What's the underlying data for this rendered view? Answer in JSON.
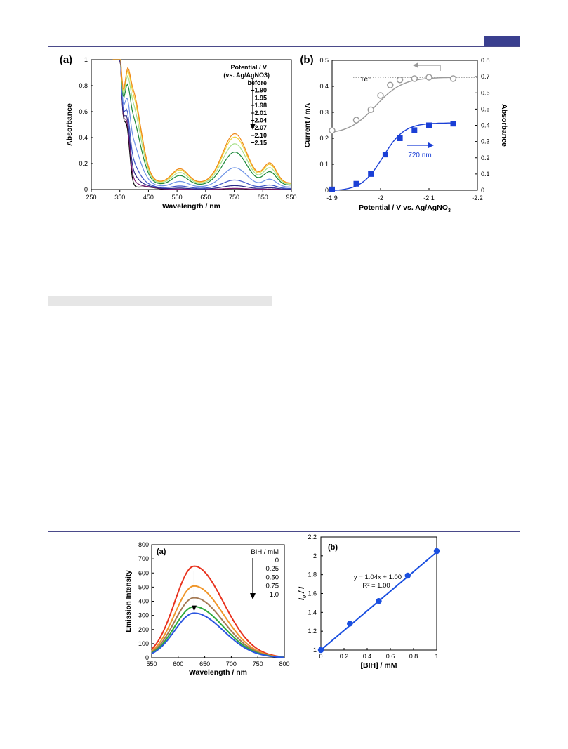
{
  "chart_data": [
    {
      "type": "line",
      "panel_label": "(a)",
      "xlabel": "Wavelength / nm",
      "ylabel": "Absorbance",
      "xlim": [
        250,
        950
      ],
      "ylim": [
        0,
        1
      ],
      "xticks": [
        250,
        350,
        450,
        550,
        650,
        750,
        850,
        950
      ],
      "yticks": [
        0,
        0.2,
        0.4,
        0.6,
        0.8,
        1
      ],
      "ytick_labels": [
        "0",
        "0.2",
        "0.4",
        "0.6",
        "0.8",
        "1"
      ],
      "legend_title": [
        "Potential / V",
        "(vs. Ag/AgNO3)"
      ],
      "legend_entries": [
        "before",
        "−1.90",
        "−1.95",
        "−1.98",
        "−2.01",
        "−2.04",
        "−2.07",
        "−2.10",
        "−2.15"
      ],
      "series": [
        {
          "label": "before",
          "color": "#000000",
          "scale": 0,
          "shoulder": 0.02
        },
        {
          "label": "−1.90",
          "color": "#7a1a6e",
          "scale": 0.02,
          "shoulder": 0.04
        },
        {
          "label": "−1.95",
          "color": "#2a2a8a",
          "scale": 0.07,
          "shoulder": 0.08
        },
        {
          "label": "−1.98",
          "color": "#3b52c8",
          "scale": 0.17,
          "shoulder": 0.13
        },
        {
          "label": "−2.01",
          "color": "#6c92e6",
          "scale": 0.39,
          "shoulder": 0.2
        },
        {
          "label": "−2.04",
          "color": "#1d8a3a",
          "scale": 0.67,
          "shoulder": 0.27
        },
        {
          "label": "−2.07",
          "color": "#a8e08c",
          "scale": 0.82,
          "shoulder": 0.31
        },
        {
          "label": "−2.10",
          "color": "#f0d23c",
          "scale": 0.94,
          "shoulder": 0.33
        },
        {
          "label": "−2.15",
          "color": "#f08a1a",
          "scale": 1.0,
          "shoulder": 0.34
        }
      ]
    },
    {
      "type": "scatter",
      "panel_label": "(b)",
      "xlabel": "Potential / V vs. Ag/AgNO",
      "xlabel_sub": "3",
      "ylabel_left": "Current / mA",
      "ylabel_right": "Absorbance",
      "xlim": [
        -1.9,
        -2.2
      ],
      "ylim_left": [
        0,
        0.5
      ],
      "ylim_right": [
        0,
        0.8
      ],
      "xticks": [
        -1.9,
        -2,
        -2.1,
        -2.2
      ],
      "xtick_labels": [
        "-1.9",
        "-2",
        "-2.1",
        "-2.2"
      ],
      "yticks_left": [
        0,
        0.1,
        0.2,
        0.3,
        0.4,
        0.5
      ],
      "yticks_right": [
        0,
        0.1,
        0.2,
        0.3,
        0.4,
        0.5,
        0.6,
        0.7,
        0.8
      ],
      "annotation_1e": "1e⁻",
      "level_1e": 0.435,
      "annotation_720": "720 nm",
      "series": [
        {
          "name": "Current",
          "axis": "left",
          "marker": "open-circle",
          "color": "#999999",
          "x": [
            -1.9,
            -1.95,
            -1.98,
            -2.0,
            -2.02,
            -2.04,
            -2.07,
            -2.1,
            -2.15
          ],
          "y": [
            0.23,
            0.27,
            0.31,
            0.365,
            0.405,
            0.425,
            0.43,
            0.435,
            0.43
          ]
        },
        {
          "name": "Absorbance",
          "axis": "right",
          "marker": "filled-square",
          "color": "#1a3fd6",
          "x": [
            -1.9,
            -1.95,
            -1.98,
            -2.01,
            -2.04,
            -2.07,
            -2.1,
            -2.15
          ],
          "y": [
            0.005,
            0.04,
            0.1,
            0.22,
            0.32,
            0.37,
            0.4,
            0.41
          ]
        }
      ]
    },
    {
      "type": "line",
      "panel_label": "(a)",
      "xlabel": "Wavelength / nm",
      "ylabel": "Emission Intensity",
      "xlim": [
        550,
        800
      ],
      "ylim": [
        0,
        800
      ],
      "xticks": [
        550,
        600,
        650,
        700,
        750,
        800
      ],
      "yticks": [
        0,
        100,
        200,
        300,
        400,
        500,
        600,
        700,
        800
      ],
      "legend_title": "BIH / mM",
      "legend_entries": [
        "0",
        "0.25",
        "0.50",
        "0.75",
        "1.0"
      ],
      "series": [
        {
          "label": "0",
          "color": "#e8321e",
          "peak": 648
        },
        {
          "label": "0.25",
          "color": "#f0962a",
          "peak": 508
        },
        {
          "label": "0.50",
          "color": "#a57a55",
          "peak": 425
        },
        {
          "label": "0.75",
          "color": "#2eaa3c",
          "peak": 362
        },
        {
          "label": "1.0",
          "color": "#2a55e0",
          "peak": 316
        }
      ]
    },
    {
      "type": "scatter",
      "panel_label": "(b)",
      "xlabel": "[BIH] / mM",
      "ylabel_main": "I",
      "ylabel_sub": "0",
      "ylabel_rest": " / I",
      "xlim": [
        0,
        1
      ],
      "ylim": [
        1,
        2.2
      ],
      "xticks": [
        0,
        0.2,
        0.4,
        0.6,
        0.8,
        1
      ],
      "yticks": [
        1,
        1.2,
        1.4,
        1.6,
        1.8,
        2,
        2.2
      ],
      "equation": "y = 1.04x + 1.00",
      "r2": "R² = 1.00",
      "fit_slope": 1.04,
      "fit_intercept": 1.0,
      "color": "#1a4fe0",
      "x": [
        0,
        0.25,
        0.5,
        0.75,
        1.0
      ],
      "y": [
        1.0,
        1.28,
        1.52,
        1.79,
        2.05
      ]
    }
  ]
}
